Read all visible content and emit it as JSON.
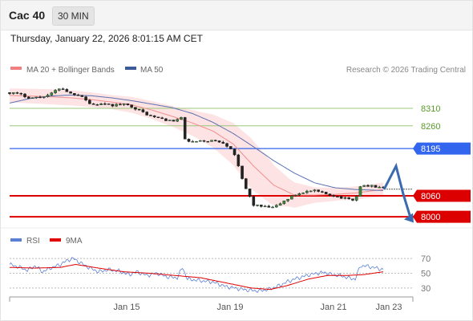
{
  "header": {
    "title": "Cac 40",
    "timeframe": "30 MIN"
  },
  "timestamp": "Thursday, January 22, 2026 8:01:15 AM CET",
  "legend_main": [
    {
      "label": "MA 20 + Bollinger Bands",
      "color": "#f08080"
    },
    {
      "label": "MA 50",
      "color": "#3a5a9a"
    }
  ],
  "copyright": "Research © 2026 Trading Central",
  "legend_rsi": [
    {
      "label": "RSI",
      "color": "#5b7fd6"
    },
    {
      "label": "9MA",
      "color": "#e00000"
    }
  ],
  "chart_data": [
    {
      "type": "candlestick",
      "instrument": "Cac 40",
      "interval": "30 MIN",
      "x_tick_labels": [
        "Jan 15",
        "Jan 19",
        "Jan 21",
        "Jan 23"
      ],
      "ylim": [
        7975,
        8365
      ],
      "levels": [
        {
          "value": 8310,
          "label": "8310",
          "style": "thin",
          "color": "#9cc87a",
          "text_color": "#5a9a2a"
        },
        {
          "value": 8260,
          "label": "8260",
          "style": "thin",
          "color": "#9cc87a",
          "text_color": "#5a9a2a"
        },
        {
          "value": 8195,
          "label": "8195",
          "style": "badge",
          "color": "#3366ee"
        },
        {
          "value": 8060,
          "label": "8060",
          "style": "badge",
          "color": "#dd0000"
        },
        {
          "value": 8000,
          "label": "8000",
          "style": "badge",
          "color": "#dd0000"
        }
      ],
      "last_price": 8079,
      "scenario_path": [
        8078,
        8145,
        8065,
        7990
      ],
      "price_anchors": [
        [
          0,
          8355
        ],
        [
          8,
          8350
        ],
        [
          16,
          8340
        ],
        [
          24,
          8342
        ],
        [
          32,
          8350
        ],
        [
          40,
          8370
        ],
        [
          48,
          8352
        ],
        [
          56,
          8348
        ],
        [
          64,
          8320
        ],
        [
          72,
          8322
        ],
        [
          80,
          8318
        ],
        [
          88,
          8322
        ],
        [
          96,
          8316
        ],
        [
          104,
          8300
        ],
        [
          112,
          8286
        ],
        [
          120,
          8280
        ],
        [
          128,
          8272
        ],
        [
          136,
          8285
        ],
        [
          137,
          8220
        ],
        [
          144,
          8214
        ],
        [
          152,
          8216
        ],
        [
          160,
          8218
        ],
        [
          168,
          8212
        ],
        [
          176,
          8190
        ],
        [
          184,
          8095
        ],
        [
          192,
          8034
        ],
        [
          200,
          8028
        ],
        [
          208,
          8026
        ],
        [
          216,
          8045
        ],
        [
          224,
          8062
        ],
        [
          232,
          8072
        ],
        [
          240,
          8074
        ],
        [
          248,
          8066
        ],
        [
          256,
          8060
        ],
        [
          264,
          8052
        ],
        [
          272,
          8048
        ],
        [
          276,
          8088
        ],
        [
          284,
          8088
        ],
        [
          294,
          8082
        ]
      ],
      "ma20_anchors": [
        [
          0,
          8347
        ],
        [
          16,
          8345
        ],
        [
          32,
          8343
        ],
        [
          48,
          8340
        ],
        [
          64,
          8335
        ],
        [
          80,
          8328
        ],
        [
          96,
          8320
        ],
        [
          112,
          8305
        ],
        [
          128,
          8287
        ],
        [
          144,
          8268
        ],
        [
          160,
          8245
        ],
        [
          176,
          8208
        ],
        [
          192,
          8145
        ],
        [
          208,
          8090
        ],
        [
          224,
          8062
        ],
        [
          240,
          8062
        ],
        [
          256,
          8064
        ],
        [
          272,
          8068
        ],
        [
          294,
          8078
        ]
      ],
      "ma50_anchors": [
        [
          0,
          8325
        ],
        [
          16,
          8338
        ],
        [
          32,
          8345
        ],
        [
          48,
          8348
        ],
        [
          64,
          8346
        ],
        [
          80,
          8340
        ],
        [
          96,
          8332
        ],
        [
          112,
          8322
        ],
        [
          128,
          8312
        ],
        [
          144,
          8295
        ],
        [
          160,
          8270
        ],
        [
          176,
          8238
        ],
        [
          192,
          8200
        ],
        [
          208,
          8160
        ],
        [
          224,
          8125
        ],
        [
          240,
          8097
        ],
        [
          256,
          8083
        ],
        [
          272,
          8078
        ],
        [
          294,
          8075
        ]
      ],
      "bb_width_anchors": [
        [
          0,
          20
        ],
        [
          40,
          22
        ],
        [
          80,
          20
        ],
        [
          110,
          25
        ],
        [
          130,
          30
        ],
        [
          150,
          40
        ],
        [
          170,
          55
        ],
        [
          190,
          72
        ],
        [
          205,
          62
        ],
        [
          220,
          40
        ],
        [
          240,
          22
        ],
        [
          260,
          18
        ],
        [
          294,
          20
        ]
      ]
    },
    {
      "type": "line",
      "name": "RSI",
      "ylim": [
        20,
        80
      ],
      "y_ticks": [
        70,
        50,
        30
      ],
      "series": [
        {
          "name": "RSI",
          "color": "#5b7fd6"
        },
        {
          "name": "9MA",
          "color": "#e00000"
        }
      ],
      "rsi_anchors": [
        [
          0,
          62
        ],
        [
          8,
          58
        ],
        [
          14,
          54
        ],
        [
          20,
          60
        ],
        [
          26,
          52
        ],
        [
          32,
          57
        ],
        [
          40,
          62
        ],
        [
          46,
          68
        ],
        [
          50,
          70
        ],
        [
          56,
          64
        ],
        [
          62,
          58
        ],
        [
          70,
          52
        ],
        [
          78,
          55
        ],
        [
          86,
          53
        ],
        [
          94,
          48
        ],
        [
          100,
          52
        ],
        [
          108,
          47
        ],
        [
          116,
          50
        ],
        [
          124,
          45
        ],
        [
          132,
          44
        ],
        [
          136,
          58
        ],
        [
          140,
          42
        ],
        [
          150,
          40
        ],
        [
          160,
          38
        ],
        [
          170,
          32
        ],
        [
          180,
          29
        ],
        [
          188,
          27
        ],
        [
          196,
          26
        ],
        [
          204,
          28
        ],
        [
          212,
          33
        ],
        [
          218,
          38
        ],
        [
          224,
          42
        ],
        [
          230,
          45
        ],
        [
          236,
          48
        ],
        [
          242,
          50
        ],
        [
          248,
          51
        ],
        [
          254,
          48
        ],
        [
          260,
          47
        ],
        [
          266,
          44
        ],
        [
          272,
          42
        ],
        [
          276,
          60
        ],
        [
          280,
          60
        ],
        [
          286,
          58
        ],
        [
          294,
          55
        ]
      ],
      "ma9_anchors": [
        [
          0,
          58
        ],
        [
          20,
          57
        ],
        [
          40,
          58
        ],
        [
          52,
          62
        ],
        [
          70,
          57
        ],
        [
          90,
          52
        ],
        [
          110,
          50
        ],
        [
          130,
          47
        ],
        [
          150,
          44
        ],
        [
          170,
          37
        ],
        [
          190,
          30
        ],
        [
          205,
          28
        ],
        [
          218,
          33
        ],
        [
          235,
          42
        ],
        [
          250,
          47
        ],
        [
          265,
          47
        ],
        [
          278,
          48
        ],
        [
          294,
          52
        ]
      ]
    }
  ]
}
